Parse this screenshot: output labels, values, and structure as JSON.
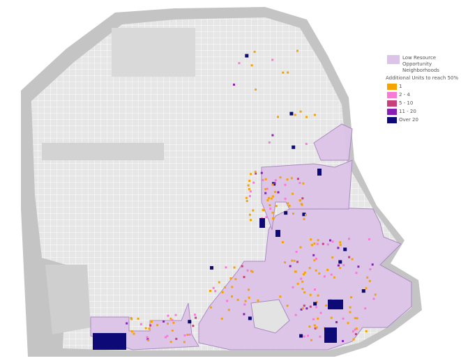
{
  "legend": {
    "region_label": "Low Resource Opportunity Neighborhoods",
    "region_color": "#dcc3e8",
    "title": "Additional Units to reach 50%",
    "items": [
      {
        "label": "1",
        "color": "#f5a300"
      },
      {
        "label": "2 - 4",
        "color": "#f77ad6"
      },
      {
        "label": "5 - 10",
        "color": "#c8407a"
      },
      {
        "label": "11 - 20",
        "color": "#8a1fb5"
      },
      {
        "label": "Over 20",
        "color": "#0d0a78"
      }
    ]
  }
}
